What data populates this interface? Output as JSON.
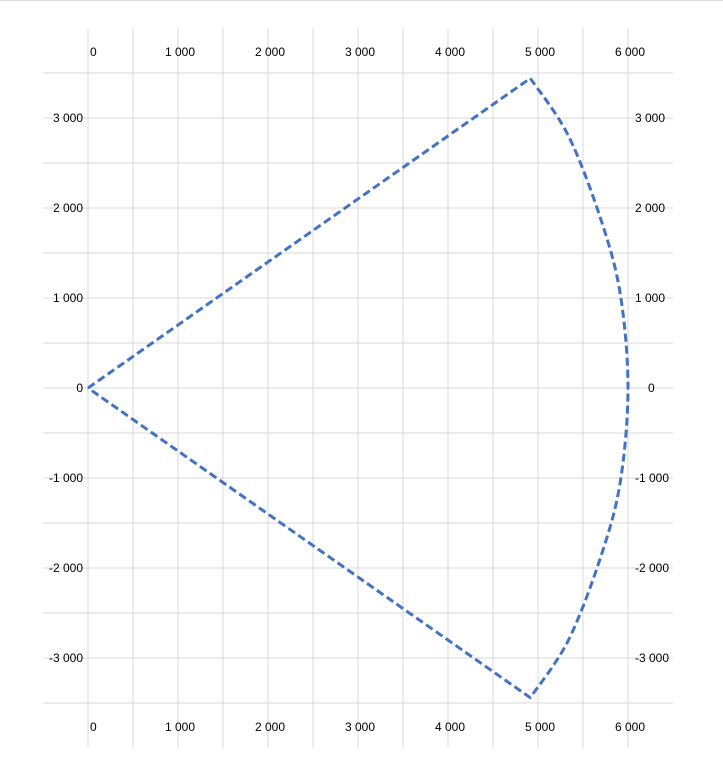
{
  "chart_data": {
    "type": "line",
    "title": "",
    "xlabel": "",
    "ylabel": "",
    "xlim": [
      0,
      6000
    ],
    "ylim": [
      -3500,
      3500
    ],
    "grid": true,
    "legend": "none",
    "x_ticks": [
      0,
      1000,
      2000,
      3000,
      4000,
      5000,
      6000
    ],
    "x_tick_labels": [
      "0",
      "1 000",
      "2 000",
      "3 000",
      "4 000",
      "5 000",
      "6 000"
    ],
    "y_ticks": [
      3000,
      2000,
      1000,
      0,
      -1000,
      -2000,
      -3000
    ],
    "y_tick_labels": [
      "3 000",
      "2 000",
      "1 000",
      "0",
      "-1 000",
      "-2 000",
      "-3 000"
    ],
    "series": [
      {
        "style": "dashed",
        "color": "#4472c4",
        "x": [
          0,
          4915,
          5340,
          5704,
          5914,
          6000,
          5914,
          5704,
          5340,
          4915,
          0
        ],
        "y": [
          0,
          3441,
          2798,
          1854,
          1042,
          0,
          -1042,
          -1854,
          -2798,
          -3441,
          0
        ]
      }
    ]
  },
  "colors": {
    "grid": "#d9d9d9",
    "series": "#4472c4"
  }
}
